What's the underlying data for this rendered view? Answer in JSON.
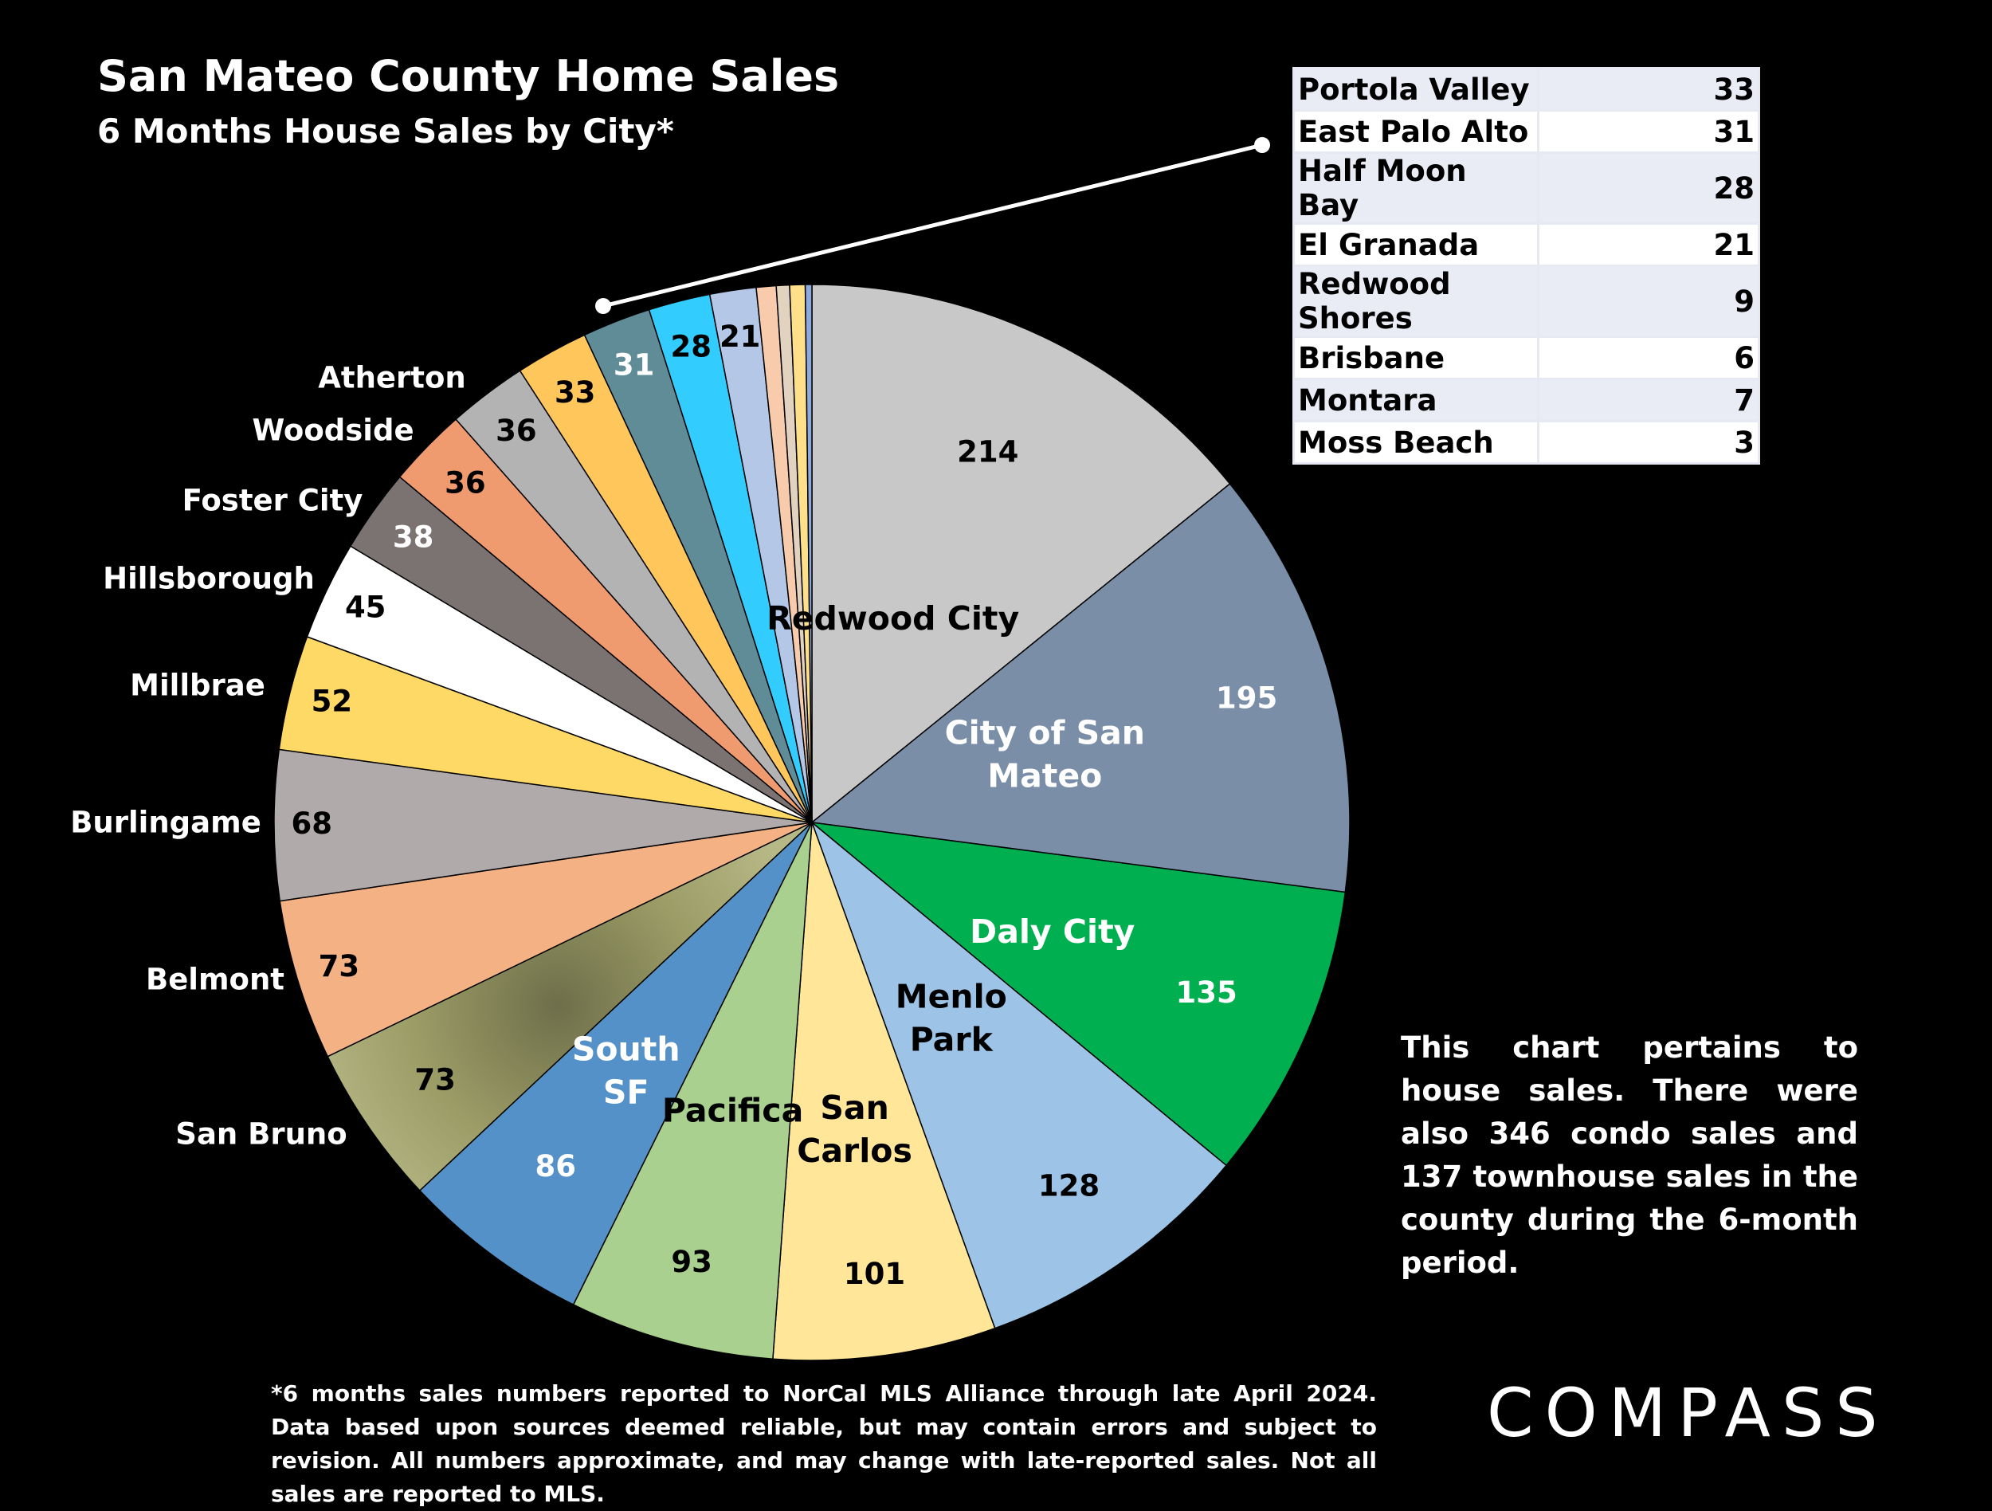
{
  "header": {
    "title": "San Mateo County Home Sales",
    "subtitle": "6 Months House Sales by City*"
  },
  "chart_data": {
    "type": "pie",
    "title": "San Mateo County Home Sales",
    "subtitle": "6 Months House Sales by City*",
    "slices": [
      {
        "label": "Redwood City",
        "value": 214,
        "color": "#c8c8c8"
      },
      {
        "label": "City of San Mateo",
        "value": 195,
        "color": "#7a8ea8"
      },
      {
        "label": "Daly City",
        "value": 135,
        "color": "#00b050"
      },
      {
        "label": "Menlo Park",
        "value": 128,
        "color": "#9dc3e6"
      },
      {
        "label": "San Carlos",
        "value": 101,
        "color": "#ffe699"
      },
      {
        "label": "Pacifica",
        "value": 93,
        "color": "#a9d08e"
      },
      {
        "label": "South SF",
        "value": 86,
        "color": "#5591c9"
      },
      {
        "label": "San Bruno",
        "value": 73,
        "color": "#a9a970"
      },
      {
        "label": "Belmont",
        "value": 73,
        "color": "#f4b183"
      },
      {
        "label": "Burlingame",
        "value": 68,
        "color": "#b0aaaa"
      },
      {
        "label": "Millbrae",
        "value": 52,
        "color": "#ffd966"
      },
      {
        "label": "Hillsborough",
        "value": 45,
        "color": "#ffffff"
      },
      {
        "label": "Foster City",
        "value": 38,
        "color": "#7b7272"
      },
      {
        "label": "Woodside",
        "value": 36,
        "color": "#ef9a6f"
      },
      {
        "label": "Atherton",
        "value": 36,
        "color": "#b3b3b3"
      },
      {
        "label": "Portola Valley",
        "value": 33,
        "color": "#ffc65c"
      },
      {
        "label": "East Palo Alto",
        "value": 31,
        "color": "#5f8c97"
      },
      {
        "label": "Half Moon Bay",
        "value": 28,
        "color": "#33ccff"
      },
      {
        "label": "El Granada",
        "value": 21,
        "color": "#b4c7e7"
      },
      {
        "label": "Redwood Shores",
        "value": 9,
        "color": "#f8cbad"
      },
      {
        "label": "Brisbane",
        "value": 6,
        "color": "#e2d3c0"
      },
      {
        "label": "Montara",
        "value": 7,
        "color": "#ffe08a"
      },
      {
        "label": "Moss Beach",
        "value": 3,
        "color": "#8ea9db"
      }
    ]
  },
  "inset_table": {
    "rows": [
      {
        "name": "Portola Valley",
        "value": "33"
      },
      {
        "name": "East Palo Alto",
        "value": "31"
      },
      {
        "name": "Half Moon Bay",
        "value": "28"
      },
      {
        "name": "El Granada",
        "value": "21"
      },
      {
        "name": "Redwood Shores",
        "value": "9"
      },
      {
        "name": "Brisbane",
        "value": "6"
      },
      {
        "name": "Montara",
        "value": "7"
      },
      {
        "name": "Moss Beach",
        "value": "3"
      }
    ]
  },
  "note": "This chart pertains to house sales. There were also 346 condo sales and 137 townhouse sales in the county during the 6-month period.",
  "footnote": "*6 months sales numbers reported to NorCal MLS Alliance through late April 2024. Data based upon sources deemed reliable, but may contain errors and subject to revision. All numbers approximate, and may change with late-reported sales. Not all sales are reported to MLS.",
  "brand": "COMPASS"
}
